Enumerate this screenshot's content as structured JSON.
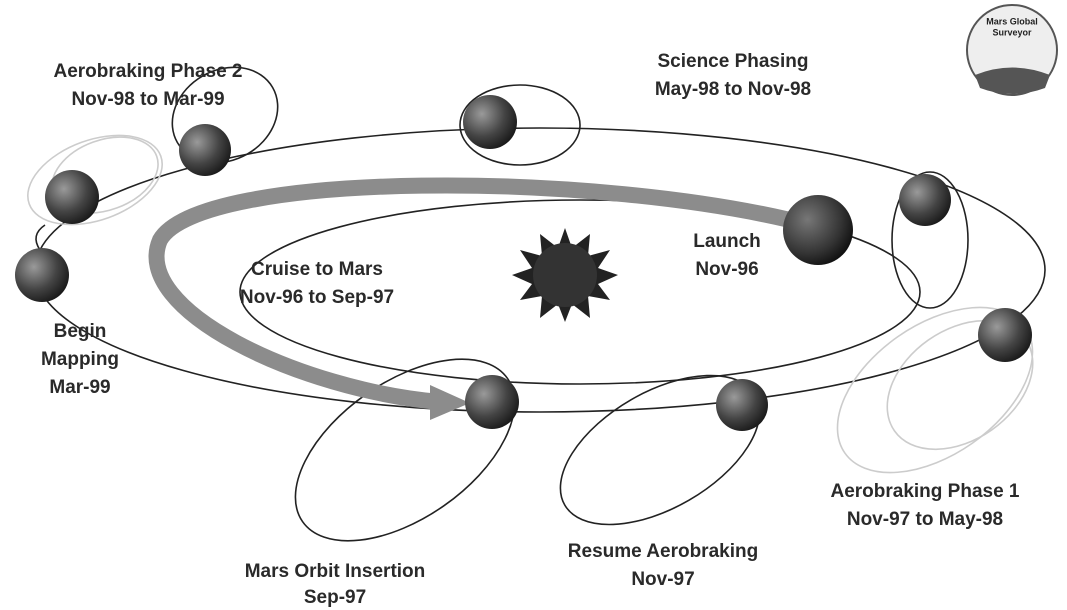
{
  "events": [
    {
      "lines": [
        "Aerobraking Phase 2",
        "Nov-98 to Mar-99"
      ]
    },
    {
      "lines": [
        "Science Phasing",
        "May-98 to Nov-98"
      ]
    },
    {
      "lines": [
        "Launch",
        "Nov-96"
      ]
    },
    {
      "lines": [
        "Cruise to Mars",
        "Nov-96 to Sep-97"
      ]
    },
    {
      "lines": [
        "Begin",
        "Mapping",
        "Mar-99"
      ]
    },
    {
      "lines": [
        "Aerobraking Phase 1",
        "Nov-97 to May-98"
      ]
    },
    {
      "lines": [
        "Resume Aerobraking",
        "Nov-97"
      ]
    },
    {
      "lines": [
        "Mars Orbit Insertion",
        "Sep-97"
      ]
    }
  ],
  "logo": {
    "lines": [
      "Mars Global",
      "Surveyor"
    ]
  }
}
